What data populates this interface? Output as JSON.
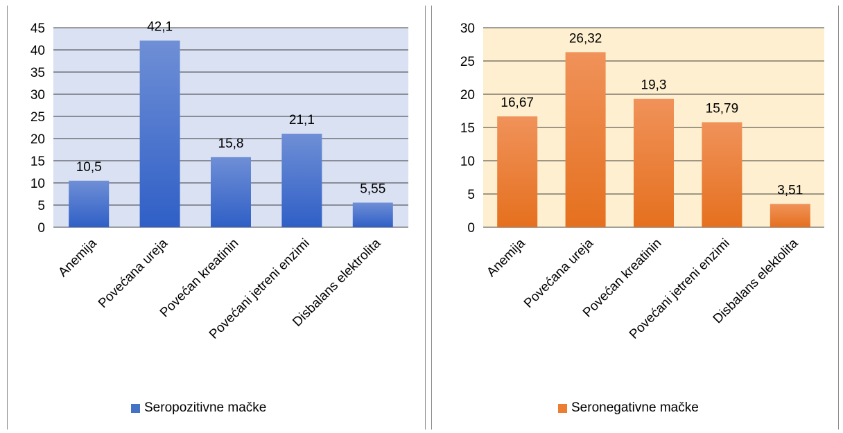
{
  "chart_data": [
    {
      "type": "bar",
      "categories": [
        "Anemija",
        "Povećana ureja",
        "Povećan kreatinin",
        "Povećani jetreni enzimi",
        "Disbalans elektrolita"
      ],
      "series": [
        {
          "name": "Seropozitivne mačke",
          "values": [
            10.5,
            42.1,
            15.8,
            21.1,
            5.55
          ]
        }
      ],
      "data_labels": [
        "10,5",
        "42,1",
        "15,8",
        "21,1",
        "5,55"
      ],
      "yticks": [
        "0",
        "5",
        "10",
        "15",
        "20",
        "25",
        "30",
        "35",
        "40",
        "45"
      ],
      "ylim": [
        0,
        45
      ],
      "ystep": 5,
      "grid": true,
      "legend_position": "bottom",
      "colors": {
        "bar_top": "#6f8fd6",
        "bar_bottom": "#2f5fc6",
        "plot_bg": "#d9e1f2",
        "grid": "#000000",
        "swatch": "#4472c4"
      }
    },
    {
      "type": "bar",
      "categories": [
        "Anemija",
        "Povećana ureja",
        "Povećan kreatinin",
        "Povećani jetreni enzimi",
        "Disbalans elektolita"
      ],
      "series": [
        {
          "name": "Seronegativne mačke",
          "values": [
            16.67,
            26.32,
            19.3,
            15.79,
            3.51
          ]
        }
      ],
      "data_labels": [
        "16,67",
        "26,32",
        "19,3",
        "15,79",
        "3,51"
      ],
      "yticks": [
        "0",
        "5",
        "10",
        "15",
        "20",
        "25",
        "30"
      ],
      "ylim": [
        0,
        30
      ],
      "ystep": 5,
      "grid": true,
      "legend_position": "bottom",
      "colors": {
        "bar_top": "#f0925a",
        "bar_bottom": "#e5701e",
        "plot_bg": "#fdefcf",
        "grid": "#000000",
        "swatch": "#ed7d31"
      }
    }
  ]
}
